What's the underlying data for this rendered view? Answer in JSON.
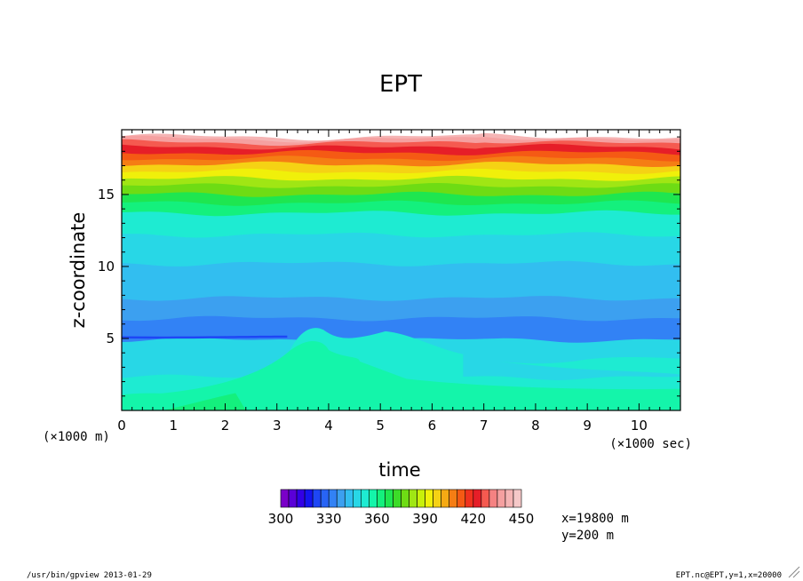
{
  "chart_data": {
    "type": "heatmap",
    "title": "EPT",
    "xlabel": "time",
    "ylabel": "z-coordinate",
    "x_scale_note": "(×1000 sec)",
    "y_scale_note": "(×1000 m)",
    "xlim": [
      0,
      10.8
    ],
    "ylim": [
      0,
      19.5
    ],
    "x_ticks": [
      "0",
      "1",
      "2",
      "3",
      "4",
      "5",
      "6",
      "7",
      "8",
      "9",
      "10"
    ],
    "y_ticks": [
      "5",
      "10",
      "15"
    ],
    "colorbar": {
      "min": 300,
      "max": 450,
      "step": 5,
      "tick_labels": [
        "300",
        "330",
        "360",
        "390",
        "420",
        "450"
      ],
      "colors": [
        "#7a00c8",
        "#5a00d8",
        "#3200e6",
        "#1414f0",
        "#1e46f5",
        "#2864f5",
        "#3282f5",
        "#3ca0f0",
        "#32bef0",
        "#28d7e6",
        "#1eebd2",
        "#14f5aa",
        "#14f07d",
        "#1ee650",
        "#3cdc28",
        "#6edc14",
        "#a0e614",
        "#c8f00a",
        "#f0f00a",
        "#f5d214",
        "#f5aa14",
        "#f57d14",
        "#f55a14",
        "#f0321e",
        "#e61e28",
        "#f55a50",
        "#f58282",
        "#f5a0a0",
        "#f5b4b4",
        "#f5c8c8"
      ]
    },
    "layers": [
      {
        "z_top": 1.0,
        "value": 357
      },
      {
        "z_top": 2.3,
        "value": 352
      },
      {
        "z_top": 4.9,
        "value": 347
      },
      {
        "z_top": 6.4,
        "value": 330
      },
      {
        "z_top": 7.8,
        "value": 337
      },
      {
        "z_top": 10.2,
        "value": 342
      },
      {
        "z_top": 12.2,
        "value": 347
      },
      {
        "z_top": 13.7,
        "value": 352
      },
      {
        "z_top": 14.4,
        "value": 360
      },
      {
        "z_top": 15.0,
        "value": 367
      },
      {
        "z_top": 15.6,
        "value": 375
      },
      {
        "z_top": 16.1,
        "value": 382
      },
      {
        "z_top": 16.6,
        "value": 390
      },
      {
        "z_top": 17.1,
        "value": 397
      },
      {
        "z_top": 17.5,
        "value": 405
      },
      {
        "z_top": 17.9,
        "value": 412
      },
      {
        "z_top": 18.3,
        "value": 420
      },
      {
        "z_top": 18.6,
        "value": 427
      },
      {
        "z_top": 18.85,
        "value": 435
      },
      {
        "z_top": 19.0,
        "value": 442
      }
    ]
  },
  "annotations": {
    "location_x": "x=19800 m",
    "location_y": "y=200 m"
  },
  "footer": {
    "left": "/usr/bin/gpview  2013-01-29",
    "right": "EPT.nc@EPT,y=1,x=20000"
  }
}
